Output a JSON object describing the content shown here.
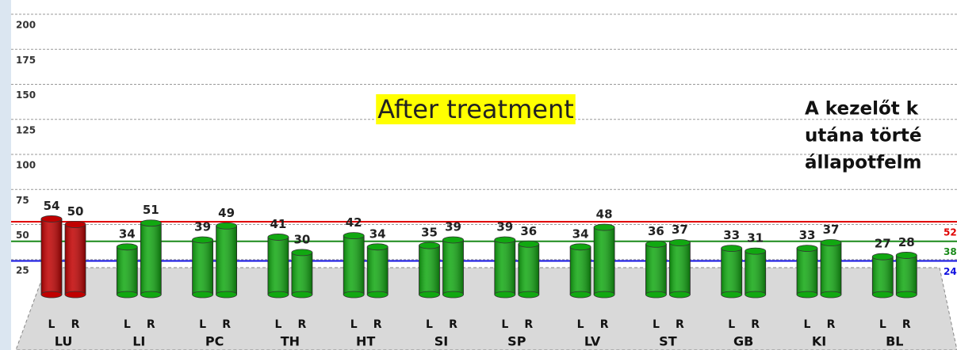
{
  "chart_data": {
    "type": "bar",
    "title": "After treatment",
    "annotation_lines": [
      "A kezelőt k",
      "utána törté",
      "állapotfelm"
    ],
    "categories": [
      "LU",
      "LI",
      "PC",
      "TH",
      "HT",
      "SI",
      "SP",
      "LV",
      "ST",
      "GB",
      "KI",
      "BL"
    ],
    "series": [
      {
        "name": "L",
        "values": [
          54,
          34,
          39,
          41,
          42,
          35,
          39,
          34,
          36,
          33,
          33,
          27
        ]
      },
      {
        "name": "R",
        "values": [
          50,
          51,
          49,
          30,
          34,
          39,
          36,
          48,
          37,
          31,
          37,
          28
        ]
      }
    ],
    "category_colors": [
      "#c00000",
      "#11a811",
      "#11a811",
      "#11a811",
      "#11a811",
      "#11a811",
      "#11a811",
      "#11a811",
      "#11a811",
      "#11a811",
      "#11a811",
      "#11a811"
    ],
    "reference_lines": [
      {
        "value": 52,
        "color": "#e00000"
      },
      {
        "value": 38,
        "color": "#1a8a1a"
      },
      {
        "value": 24,
        "color": "#1010e0"
      }
    ],
    "ylim": [
      0,
      200
    ],
    "yticks": [
      25,
      50,
      75,
      100,
      125,
      150,
      175,
      200
    ],
    "grid": true
  }
}
